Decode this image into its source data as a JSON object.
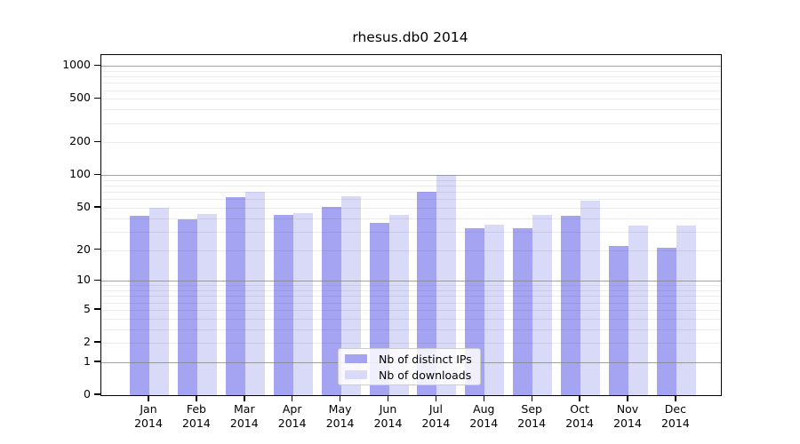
{
  "chart_data": {
    "type": "bar",
    "title": "rhesus.db0 2014",
    "categories": [
      "Jan",
      "Feb",
      "Mar",
      "Apr",
      "May",
      "Jun",
      "Jul",
      "Aug",
      "Sep",
      "Oct",
      "Nov",
      "Dec"
    ],
    "year": "2014",
    "series": [
      {
        "name": "Nb of distinct IPs",
        "color": "#a4a4f2",
        "values": [
          42,
          39,
          63,
          43,
          51,
          36,
          70,
          32,
          32,
          42,
          22,
          21
        ]
      },
      {
        "name": "Nb of downloads",
        "color": "#d9d9f8",
        "values": [
          50,
          44,
          71,
          45,
          64,
          43,
          100,
          35,
          43,
          58,
          34,
          34
        ]
      }
    ],
    "xlabel": "",
    "ylabel": "",
    "y_scale": "log1p",
    "ylim": [
      0,
      1260
    ],
    "y_axis_ticks": [
      0,
      1,
      2,
      5,
      10,
      20,
      50,
      100,
      200,
      500,
      1000
    ],
    "y_major_gridlines": [
      1,
      10,
      100,
      1000
    ],
    "y_minor_gridlines": [
      2,
      3,
      4,
      5,
      6,
      7,
      8,
      9,
      20,
      30,
      40,
      50,
      60,
      70,
      80,
      90,
      200,
      300,
      400,
      500,
      600,
      700,
      800,
      900
    ],
    "grid": true,
    "legend_position": "lower center"
  },
  "colors": {
    "background": "#ffffff",
    "axis": "#000000",
    "major_grid": "#828282",
    "minor_grid": "#ebebeb",
    "bar_distinct_ips": "#a4a4f2",
    "bar_downloads": "#d9d9f8"
  }
}
